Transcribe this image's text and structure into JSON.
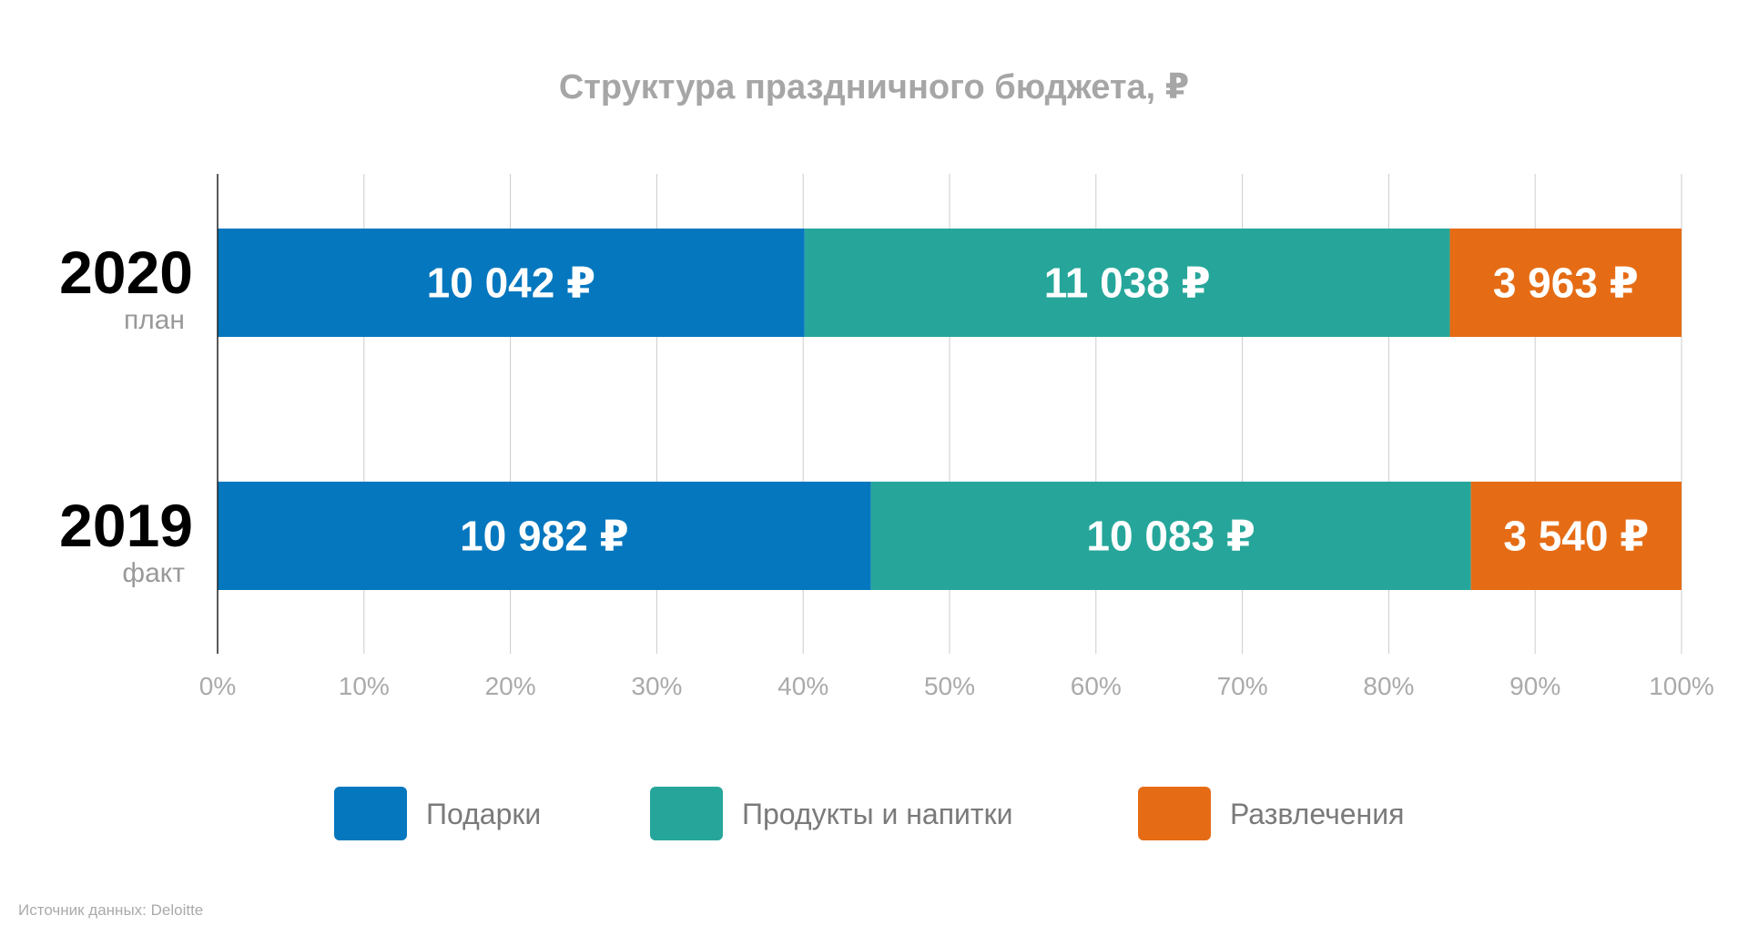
{
  "chart_data": {
    "type": "bar",
    "orientation": "horizontal",
    "stacked": "percent",
    "title": "Структура праздничного бюджета, ₽",
    "categories": [
      {
        "label": "2020",
        "sublabel": "план"
      },
      {
        "label": "2019",
        "sublabel": "факт"
      }
    ],
    "series": [
      {
        "name": "Подарки",
        "color": "#0477BE",
        "values": [
          10042,
          10982
        ],
        "labels": [
          "10 042 ₽",
          "10 982 ₽"
        ]
      },
      {
        "name": "Продукты и напитки",
        "color": "#26A69A",
        "values": [
          11038,
          10083
        ],
        "labels": [
          "11 038 ₽",
          "10 083 ₽"
        ]
      },
      {
        "name": "Развлечения",
        "color": "#E56C15",
        "values": [
          3963,
          3540
        ],
        "labels": [
          "3 963 ₽",
          "3 540 ₽"
        ]
      }
    ],
    "xticks": [
      "0%",
      "10%",
      "20%",
      "30%",
      "40%",
      "50%",
      "60%",
      "70%",
      "80%",
      "90%",
      "100%"
    ],
    "xlim": [
      0,
      100
    ],
    "grid": true,
    "legend": "bottom",
    "footer": "Источник данных: Deloitte"
  }
}
